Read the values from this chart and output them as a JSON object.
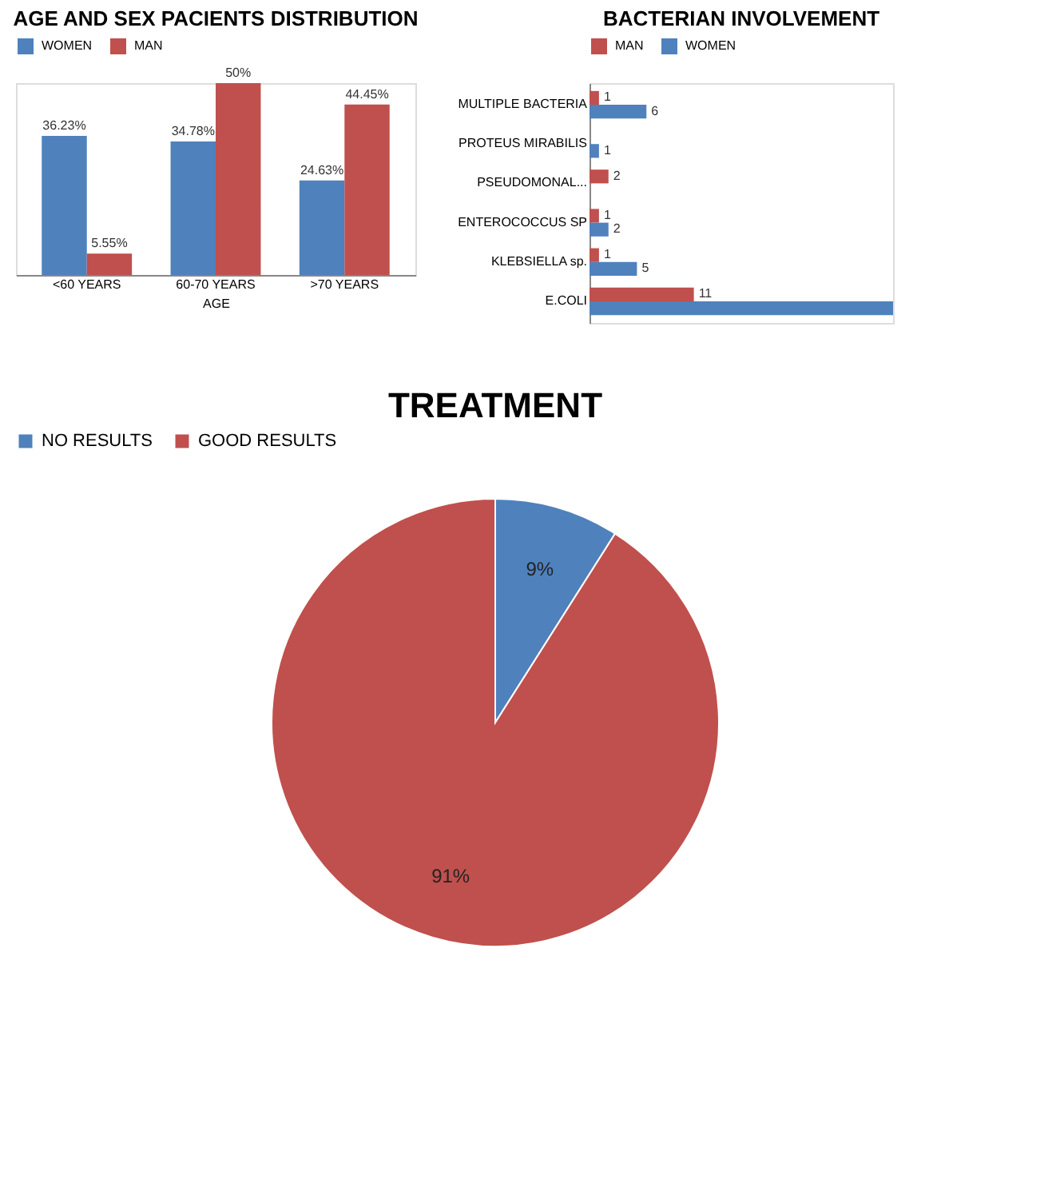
{
  "chart_data": [
    {
      "type": "bar",
      "title": "AGE AND SEX  PACIENTS DISTRIBUTION",
      "xlabel": "AGE",
      "categories": [
        "<60 YEARS",
        "60-70 YEARS",
        ">70 YEARS"
      ],
      "legend": "top",
      "series": [
        {
          "name": "WOMEN",
          "color": "#4f81bd",
          "values": [
            36.23,
            34.78,
            24.63
          ],
          "value_labels": [
            "36.23%",
            "34.78%",
            "24.63%"
          ]
        },
        {
          "name": "MAN",
          "color": "#c0504d",
          "values": [
            5.55,
            50,
            44.45
          ],
          "value_labels": [
            "5.55%",
            "50%",
            "44.45%"
          ]
        }
      ]
    },
    {
      "type": "bar",
      "orientation": "horizontal",
      "title": "BACTERIAN INVOLVEMENT",
      "categories": [
        "MULTIPLE BACTERIA",
        "PROTEUS MIRABILIS",
        "PSEUDOMONAL...",
        "ENTEROCOCCUS SP",
        "KLEBSIELLA sp.",
        "E.COLI"
      ],
      "legend": "top",
      "series": [
        {
          "name": "MAN",
          "color": "#c0504d",
          "values": [
            1,
            null,
            2,
            1,
            1,
            11
          ],
          "value_labels": [
            "1",
            null,
            "2",
            "1",
            "1",
            "11"
          ]
        },
        {
          "name": "WOMEN",
          "color": "#4f81bd",
          "values": [
            6,
            1,
            null,
            2,
            5,
            32
          ],
          "value_labels": [
            "6",
            "1",
            null,
            "2",
            "5",
            null
          ]
        }
      ]
    },
    {
      "type": "pie",
      "title": "TREATMENT",
      "categories": [
        "NO RESULTS",
        "GOOD RESULTS"
      ],
      "values": [
        9,
        91
      ],
      "colors": [
        "#4f81bd",
        "#c0504d"
      ],
      "legend": "top",
      "value_labels": [
        "9%",
        "91%"
      ]
    }
  ]
}
